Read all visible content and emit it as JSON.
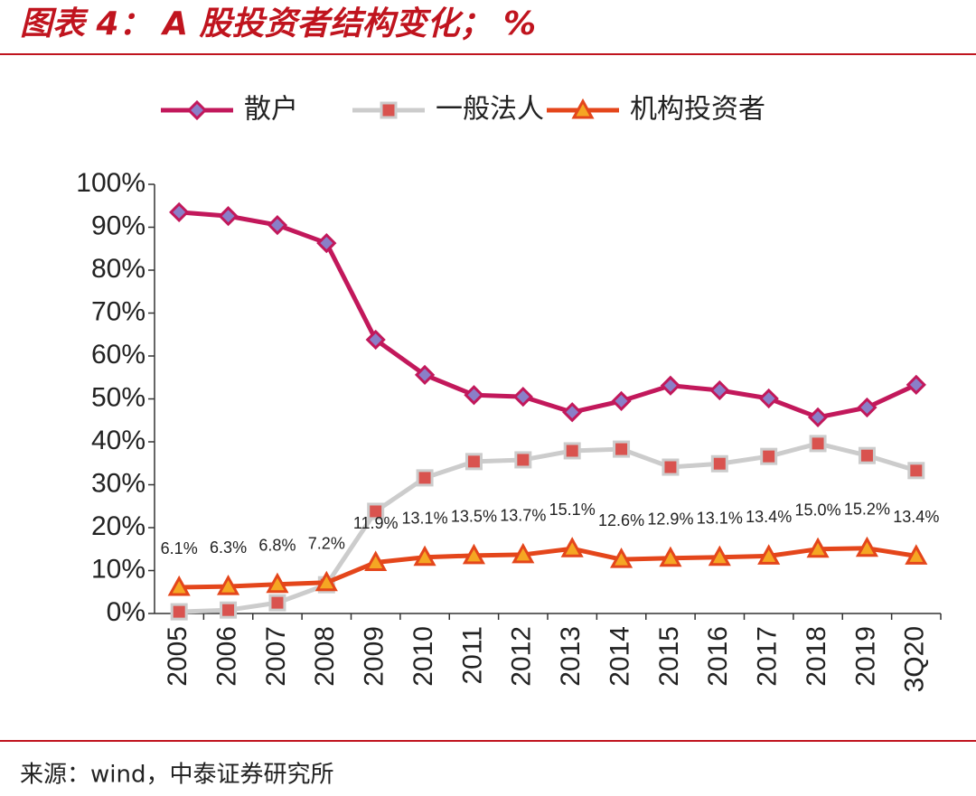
{
  "chart_data": {
    "type": "line",
    "title": "图表 4： A 股投资者结构变化； %",
    "source": "来源：wind，中泰证券研究所",
    "categories": [
      "2005",
      "2006",
      "2007",
      "2008",
      "2009",
      "2010",
      "2011",
      "2012",
      "2013",
      "2014",
      "2015",
      "2016",
      "2017",
      "2018",
      "2019",
      "3Q20"
    ],
    "series": [
      {
        "name": "散户",
        "color": "#c2185b",
        "marker": "diamond",
        "marker_color": "#8a7fc8",
        "values": [
          93.5,
          92.6,
          90.5,
          86.3,
          63.8,
          55.6,
          50.9,
          50.5,
          46.9,
          49.5,
          53.1,
          52.0,
          50.1,
          45.7,
          48.0,
          53.3
        ]
      },
      {
        "name": "一般法人",
        "color": "#cccccc",
        "marker": "square",
        "marker_color": "#d9534f",
        "values": [
          0.4,
          0.8,
          2.5,
          6.7,
          23.8,
          31.6,
          35.4,
          35.8,
          37.9,
          38.3,
          34.1,
          34.9,
          36.6,
          39.6,
          36.8,
          33.3
        ]
      },
      {
        "name": "机构投资者",
        "color": "#e4461b",
        "marker": "triangle",
        "marker_color": "#f5a623",
        "values": [
          6.1,
          6.3,
          6.8,
          7.2,
          11.9,
          13.1,
          13.5,
          13.7,
          15.1,
          12.6,
          12.9,
          13.1,
          13.4,
          15.0,
          15.2,
          13.4
        ],
        "value_labels": [
          "6.1%",
          "6.3%",
          "6.8%",
          "7.2%",
          "11.9%",
          "13.1%",
          "13.5%",
          "13.7%",
          "15.1%",
          "12.6%",
          "12.9%",
          "13.1%",
          "13.4%",
          "15.0%",
          "15.2%",
          "13.4%"
        ]
      }
    ],
    "ylim": [
      0,
      100
    ],
    "yticks": [
      {
        "value": 0,
        "label": "0%"
      },
      {
        "value": 10,
        "label": "10%"
      },
      {
        "value": 20,
        "label": "20%"
      },
      {
        "value": 30,
        "label": "30%"
      },
      {
        "value": 40,
        "label": "40%"
      },
      {
        "value": 50,
        "label": "50%"
      },
      {
        "value": 60,
        "label": "60%"
      },
      {
        "value": 70,
        "label": "70%"
      },
      {
        "value": 80,
        "label": "80%"
      },
      {
        "value": 90,
        "label": "90%"
      },
      {
        "value": 100,
        "label": "100%"
      }
    ]
  }
}
